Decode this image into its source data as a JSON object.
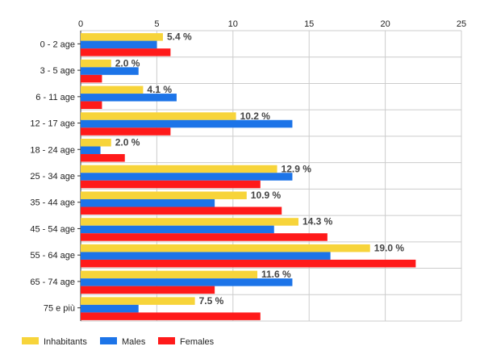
{
  "chart_data": {
    "type": "bar",
    "orientation": "horizontal",
    "title": "",
    "xlabel": "",
    "ylabel": "",
    "xlim": [
      0,
      25
    ],
    "x_ticks": [
      "0",
      "5",
      "10",
      "15",
      "20",
      "25"
    ],
    "x_axis_position": "top",
    "grid": true,
    "legend_position": "bottom-left",
    "categories": [
      "0 - 2 age",
      "3 - 5 age",
      "6 - 11 age",
      "12 - 17 age",
      "18 - 24 age",
      "25 - 34 age",
      "35 - 44 age",
      "45 - 54 age",
      "55 - 64 age",
      "65 - 74 age",
      "75 e più"
    ],
    "series": [
      {
        "name": "Inhabitants",
        "color": "#f7d43a",
        "values": [
          5.4,
          2.0,
          4.1,
          10.2,
          2.0,
          12.9,
          10.9,
          14.3,
          19.0,
          11.6,
          7.5
        ]
      },
      {
        "name": "Males",
        "color": "#1c74e8",
        "values": [
          5.0,
          3.8,
          6.3,
          13.9,
          1.3,
          13.9,
          8.8,
          12.7,
          16.4,
          13.9,
          3.8
        ]
      },
      {
        "name": "Females",
        "color": "#ff1a1a",
        "values": [
          5.9,
          1.4,
          1.4,
          5.9,
          2.9,
          11.8,
          13.2,
          16.2,
          22.0,
          8.8,
          11.8
        ]
      }
    ],
    "data_labels": [
      "5.4 %",
      "2.0 %",
      "4.1 %",
      "10.2 %",
      "2.0 %",
      "12.9 %",
      "10.9 %",
      "14.3 %",
      "19.0 %",
      "11.6 %",
      "7.5 %"
    ]
  }
}
